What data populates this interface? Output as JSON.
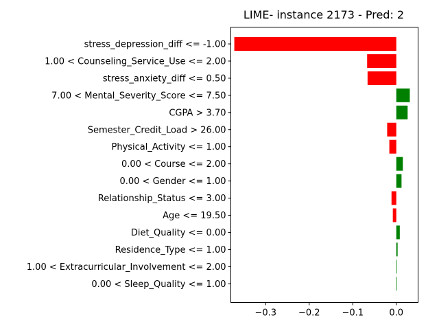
{
  "chart_data": {
    "type": "bar",
    "orientation": "horizontal",
    "title": "LIME- instance 2173 - Pred: 2",
    "xlabel": "",
    "ylabel": "",
    "xlim": [
      -0.38,
      0.05
    ],
    "xticks": [
      -0.3,
      -0.2,
      -0.1,
      0.0
    ],
    "xtick_labels": [
      "−0.3",
      "−0.2",
      "−0.1",
      "0.0"
    ],
    "grid": false,
    "colors": {
      "positive": "#008000",
      "negative": "#ff0000"
    },
    "categories": [
      "stress_depression_diff <= -1.00",
      "1.00 < Counseling_Service_Use <= 2.00",
      "stress_anxiety_diff <= 0.50",
      "7.00 < Mental_Severity_Score <= 7.50",
      "CGPA > 3.70",
      "Semester_Credit_Load > 26.00",
      "Physical_Activity <= 1.00",
      "0.00 < Course <= 2.00",
      "0.00 < Gender <= 1.00",
      "Relationship_Status <= 3.00",
      "Age <= 19.50",
      "Diet_Quality <= 0.00",
      "Residence_Type <= 1.00",
      "1.00 < Extracurricular_Involvement <= 2.00",
      "0.00 < Sleep_Quality <= 1.00"
    ],
    "values": [
      -0.372,
      -0.067,
      -0.066,
      0.031,
      0.026,
      -0.021,
      -0.016,
      0.015,
      0.012,
      -0.011,
      -0.008,
      0.008,
      0.003,
      0.001,
      0.001
    ]
  }
}
